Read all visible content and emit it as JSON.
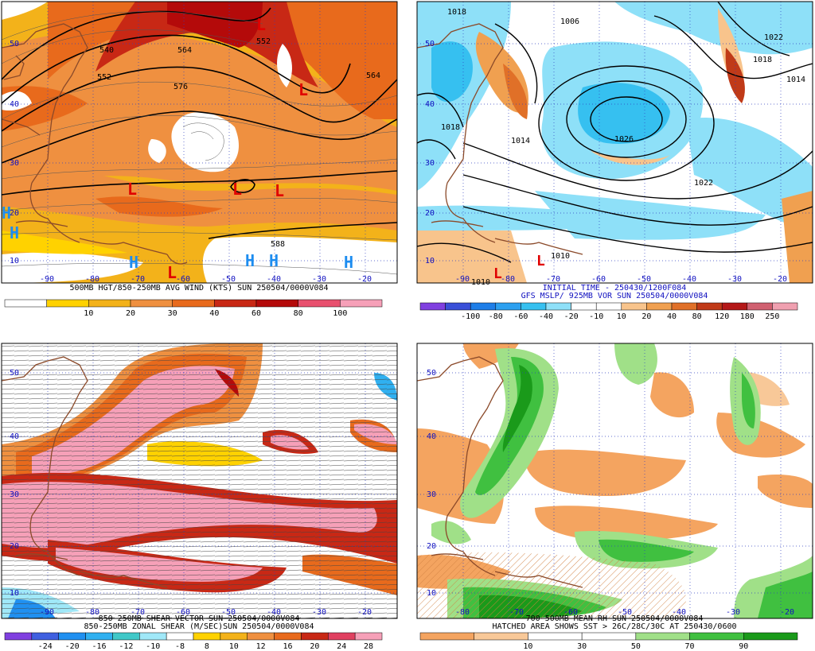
{
  "panels": [
    {
      "id": "tl",
      "title_lines": [
        "500MB HGT/850-250MB AVG WIND (KTS) SUN 250504/0000V084"
      ],
      "title_color": "#000000",
      "colorbar": {
        "colors": [
          "#ffffff",
          "#ffd200",
          "#f3b21a",
          "#ef9040",
          "#e86a1c",
          "#c82815",
          "#b40a0a",
          "#e8506e",
          "#f6a0b8"
        ],
        "labels": [
          "10",
          "20",
          "30",
          "40",
          "60",
          "80",
          "100"
        ]
      },
      "lat_labels": [
        "50",
        "40",
        "30",
        "20",
        "10"
      ],
      "lon_labels": [
        "-90",
        "-80",
        "-70",
        "-60",
        "-50",
        "-40",
        "-30",
        "-20"
      ],
      "contour_labels": [
        "540",
        "552",
        "564",
        "576",
        "552",
        "564",
        "588"
      ],
      "symbols": [
        {
          "t": "L",
          "c": "#e00000"
        },
        {
          "t": "L",
          "c": "#e00000"
        },
        {
          "t": "L",
          "c": "#e00000"
        },
        {
          "t": "L",
          "c": "#e00000"
        },
        {
          "t": "L",
          "c": "#e00000"
        },
        {
          "t": "L",
          "c": "#e00000"
        },
        {
          "t": "H",
          "c": "#1c8cf0"
        },
        {
          "t": "H",
          "c": "#1c8cf0"
        },
        {
          "t": "H",
          "c": "#1c8cf0"
        },
        {
          "t": "H",
          "c": "#1c8cf0"
        },
        {
          "t": "H",
          "c": "#1c8cf0"
        },
        {
          "t": "H",
          "c": "#1c8cf0"
        }
      ]
    },
    {
      "id": "tr",
      "title_lines": [
        "INITIAL TIME - 250430/1200F084",
        "GFS MSLP/ 925MB VOR SUN 250504/0000V084"
      ],
      "title_color": "#1010c0",
      "colorbar": {
        "colors": [
          "#8040e0",
          "#3a50d8",
          "#1e7ee8",
          "#2ca0f0",
          "#36c0f0",
          "#8ee0f8",
          "#ffffff",
          "#ffffff",
          "#f8c48c",
          "#f0a050",
          "#e07028",
          "#c03a18",
          "#b41818",
          "#d06070",
          "#f0a0b0"
        ],
        "labels": [
          "-100",
          "-80",
          "-60",
          "-40",
          "-20",
          "-10",
          "10",
          "20",
          "40",
          "80",
          "120",
          "180",
          "250"
        ]
      },
      "lat_labels": [
        "50",
        "40",
        "30",
        "20",
        "10"
      ],
      "lon_labels": [
        "-90",
        "-80",
        "-70",
        "-60",
        "-50",
        "-40",
        "-30",
        "-20"
      ],
      "contour_labels": [
        "1018",
        "1006",
        "1022",
        "1018",
        "1014",
        "1018",
        "1014",
        "1026",
        "1022",
        "1010",
        "1010"
      ],
      "symbols": [
        {
          "t": "L",
          "c": "#e00000"
        },
        {
          "t": "L",
          "c": "#e00000"
        }
      ]
    },
    {
      "id": "bl",
      "title_lines": [
        "850-250MB SHEAR VECTOR SUN 250504/0000V084",
        "850-250MB ZONAL SHEAR (M/SEC)SUN 250504/0000V084"
      ],
      "title_color": "#000000",
      "colorbar": {
        "colors": [
          "#8040e0",
          "#4060e0",
          "#2090f0",
          "#30b0f0",
          "#40c8c8",
          "#a0e8f8",
          "#ffffff",
          "#ffd200",
          "#f3b21a",
          "#ef9040",
          "#e86a1c",
          "#c82815",
          "#e04060",
          "#f6a0b8"
        ],
        "labels": [
          "-24",
          "-20",
          "-16",
          "-12",
          "-10",
          "-8",
          "8",
          "10",
          "12",
          "16",
          "20",
          "24",
          "28"
        ]
      },
      "lat_labels": [
        "50",
        "40",
        "30",
        "20",
        "10"
      ],
      "lon_labels": [
        "-90",
        "-80",
        "-70",
        "-60",
        "-50",
        "-40",
        "-30",
        "-20"
      ],
      "contour_labels": [],
      "symbols": []
    },
    {
      "id": "br",
      "title_lines": [
        "700-500MB MEAN RH SUN 250504/0000V084",
        "HATCHED AREA SHOWS SST > 26C/28C/30C AT 250430/0600"
      ],
      "title_color": "#000000",
      "colorbar": {
        "colors": [
          "#f4a460",
          "#f8c898",
          "#ffffff",
          "#ffffff",
          "#a0e088",
          "#40c040",
          "#1a9a1a"
        ],
        "labels": [
          "10",
          "30",
          "50",
          "70",
          "90"
        ]
      },
      "lat_labels": [
        "50",
        "40",
        "30",
        "20",
        "10"
      ],
      "lon_labels": [
        "-80",
        "-70",
        "-60",
        "-50",
        "-40",
        "-30",
        "-20"
      ],
      "contour_labels": [],
      "symbols": []
    }
  ],
  "colors": {
    "coast": "#8b4a2a",
    "grid": "#3040c0",
    "contour": "#000000"
  }
}
